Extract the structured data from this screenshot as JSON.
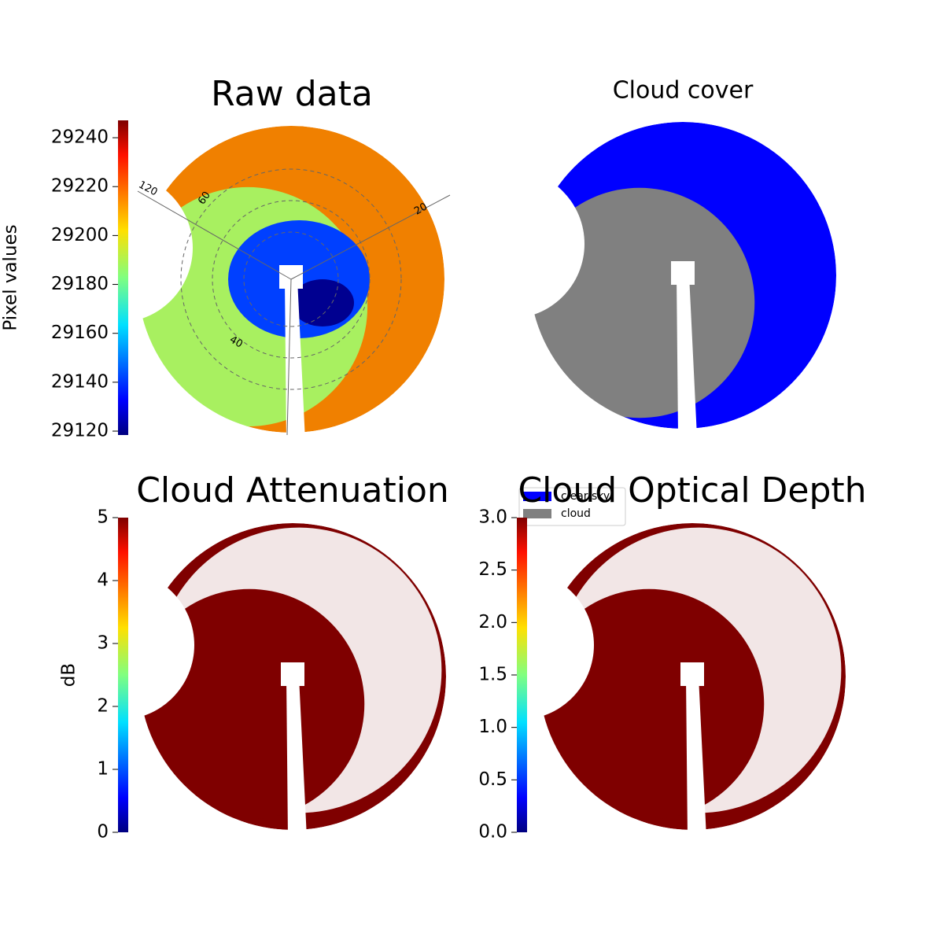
{
  "chart_data": [
    {
      "type": "image",
      "title": "Raw data",
      "cmap": "jet",
      "colorbar": {
        "label": "Pixel values",
        "lim": [
          29118.4,
          29247.1
        ],
        "ticks": [
          29120,
          29140,
          29160,
          29180,
          29200,
          29220,
          29240
        ]
      },
      "annotations": [
        "120",
        "60",
        "40",
        "20"
      ]
    },
    {
      "type": "image",
      "title": "Cloud cover",
      "series": [
        {
          "name": "clear sky",
          "color": "#0000ff"
        },
        {
          "name": "cloud",
          "color": "#808080"
        }
      ]
    },
    {
      "type": "image",
      "title": "Cloud Attenuation",
      "cmap": "jet",
      "colorbar": {
        "label": "dB",
        "lim": [
          0,
          5
        ],
        "ticks": [
          0,
          1,
          2,
          3,
          4,
          5
        ]
      }
    },
    {
      "type": "image",
      "title": "Cloud Optical Depth",
      "cmap": "jet",
      "colorbar": {
        "lim": [
          0,
          3
        ],
        "ticks": [
          {
            "value": 0,
            "label": "0.0"
          },
          0.5,
          {
            "value": 1,
            "label": "1.0"
          },
          1.5,
          {
            "value": 2,
            "label": "2.0"
          },
          2.5,
          {
            "value": 3,
            "label": "3.0"
          }
        ]
      }
    }
  ]
}
